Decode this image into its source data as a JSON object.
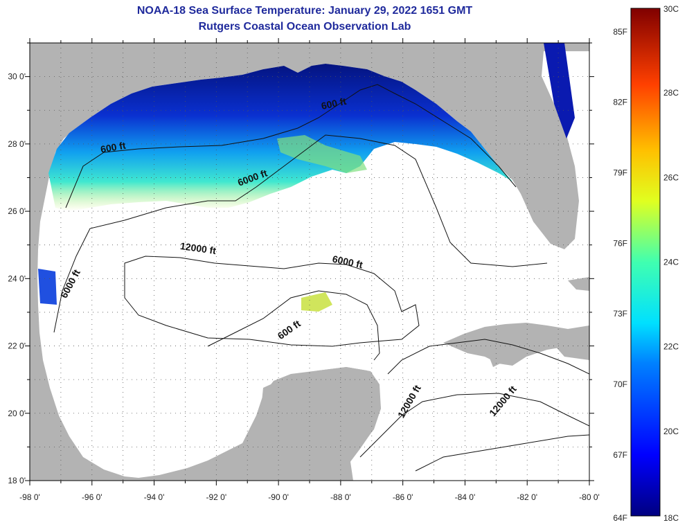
{
  "header": {
    "title": "NOAA-18 Sea Surface Temperature:  January 29, 2022 1651 GMT",
    "subtitle": "Rutgers Coastal Ocean Observation Lab"
  },
  "map": {
    "lon_range": [
      -98,
      -80
    ],
    "lat_range": [
      18,
      31
    ],
    "lon_ticks": [
      "-98 0'",
      "-96 0'",
      "-94 0'",
      "-92 0'",
      "-90 0'",
      "-88 0'",
      "-86 0'",
      "-84 0'",
      "-82 0'",
      "-80 0'"
    ],
    "lat_ticks": [
      "30 0'",
      "28 0'",
      "26 0'",
      "24 0'",
      "22 0'",
      "20 0'",
      "18 0'"
    ],
    "contour_labels": [
      {
        "text": "600 ft",
        "lon": -95.3,
        "lat": 27.8,
        "rot": -10
      },
      {
        "text": "600 ft",
        "lon": -88.2,
        "lat": 29.1,
        "rot": -12
      },
      {
        "text": "6000 ft",
        "lon": -90.8,
        "lat": 26.9,
        "rot": -20
      },
      {
        "text": "12000 ft",
        "lon": -92.6,
        "lat": 24.8,
        "rot": 8
      },
      {
        "text": "6000 ft",
        "lon": -87.8,
        "lat": 24.4,
        "rot": 12
      },
      {
        "text": "6000 ft",
        "lon": -96.6,
        "lat": 23.8,
        "rot": -62
      },
      {
        "text": "600 ft",
        "lon": -89.6,
        "lat": 22.4,
        "rot": -35
      },
      {
        "text": "12000 ft",
        "lon": -85.7,
        "lat": 20.3,
        "rot": -60
      },
      {
        "text": "12000 ft",
        "lon": -82.7,
        "lat": 20.3,
        "rot": -50
      }
    ]
  },
  "colorbar": {
    "f_labels": [
      "85F",
      "82F",
      "79F",
      "76F",
      "73F",
      "70F",
      "67F",
      "64F"
    ],
    "c_labels": [
      "30C",
      "28C",
      "26C",
      "24C",
      "22C",
      "20C",
      "18C"
    ],
    "min_c": 18,
    "max_c": 30
  },
  "colors": {
    "land": "#b3b3b3",
    "no_data": "#ffffff",
    "title": "#1f2a9c"
  }
}
